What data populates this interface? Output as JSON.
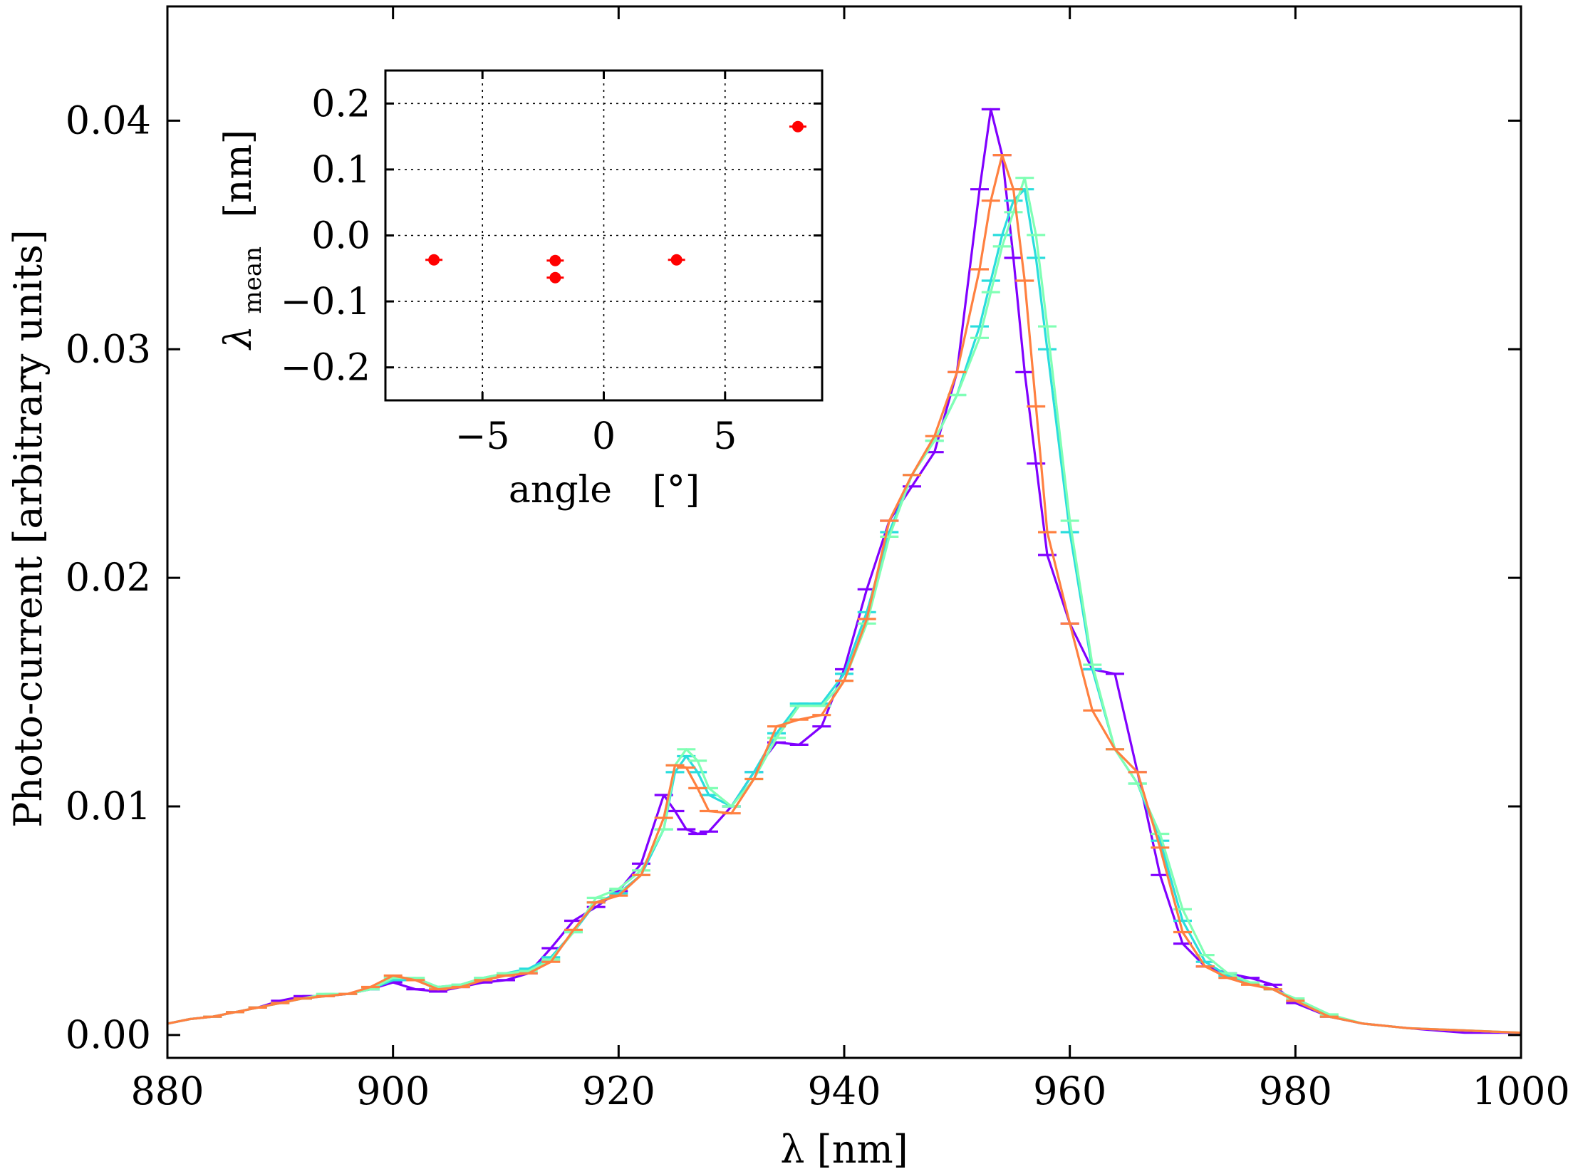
{
  "chart_data": [
    {
      "type": "line",
      "xlabel": "λ  [nm]",
      "ylabel": "Photo-current  [arbitrary units]",
      "xlim": [
        880,
        1000
      ],
      "ylim": [
        -0.001,
        0.045
      ],
      "xticks": [
        880,
        900,
        920,
        940,
        960,
        980,
        1000
      ],
      "xtick_labels": [
        "880",
        "900",
        "920",
        "940",
        "960",
        "980",
        "1000"
      ],
      "yticks": [
        0.0,
        0.01,
        0.02,
        0.03,
        0.04
      ],
      "ytick_labels": [
        "0.00",
        "0.01",
        "0.02",
        "0.03",
        "0.04"
      ],
      "grid": false,
      "series": [
        {
          "color": "#8000ff",
          "x": [
            880,
            882,
            884,
            886,
            888,
            890,
            892,
            894,
            896,
            898,
            900,
            902,
            904,
            906,
            908,
            910,
            912,
            914,
            916,
            918,
            920,
            922,
            924,
            925,
            926,
            927,
            928,
            930,
            932,
            934,
            936,
            938,
            940,
            942,
            944,
            946,
            948,
            950,
            952,
            953,
            954,
            955,
            956,
            957,
            958,
            960,
            962,
            964,
            966,
            968,
            970,
            972,
            974,
            976,
            978,
            980,
            983,
            986,
            990,
            995,
            1000
          ],
          "y": [
            0.0005,
            0.0007,
            0.0008,
            0.001,
            0.0012,
            0.0015,
            0.0017,
            0.0017,
            0.0018,
            0.002,
            0.0023,
            0.002,
            0.0019,
            0.0021,
            0.0023,
            0.0024,
            0.0027,
            0.0038,
            0.005,
            0.0056,
            0.0063,
            0.0075,
            0.0105,
            0.0098,
            0.009,
            0.0088,
            0.0089,
            0.01,
            0.0115,
            0.0128,
            0.0127,
            0.0135,
            0.016,
            0.0195,
            0.0225,
            0.024,
            0.0255,
            0.029,
            0.037,
            0.0405,
            0.0385,
            0.034,
            0.029,
            0.025,
            0.021,
            0.018,
            0.016,
            0.0158,
            0.0115,
            0.007,
            0.004,
            0.003,
            0.0027,
            0.0025,
            0.0022,
            0.0014,
            0.0008,
            0.0005,
            0.0003,
            0.0001,
            0.0001
          ]
        },
        {
          "color": "#2adddd",
          "x": [
            880,
            882,
            884,
            886,
            888,
            890,
            892,
            894,
            896,
            898,
            900,
            902,
            904,
            906,
            908,
            910,
            912,
            914,
            916,
            918,
            920,
            922,
            924,
            925,
            926,
            927,
            928,
            930,
            932,
            934,
            936,
            938,
            940,
            942,
            944,
            946,
            948,
            950,
            952,
            953,
            954,
            955,
            956,
            957,
            958,
            960,
            962,
            964,
            966,
            968,
            970,
            972,
            974,
            976,
            978,
            980,
            983,
            986,
            990,
            995,
            1000
          ],
          "y": [
            0.0005,
            0.0007,
            0.0008,
            0.001,
            0.0012,
            0.0014,
            0.0016,
            0.0017,
            0.0018,
            0.002,
            0.0024,
            0.0024,
            0.0021,
            0.0022,
            0.0025,
            0.0027,
            0.0029,
            0.0034,
            0.0045,
            0.0058,
            0.0062,
            0.007,
            0.009,
            0.0115,
            0.0122,
            0.0115,
            0.0105,
            0.01,
            0.0115,
            0.0132,
            0.0145,
            0.0145,
            0.0158,
            0.0185,
            0.022,
            0.0245,
            0.026,
            0.028,
            0.031,
            0.033,
            0.035,
            0.0365,
            0.037,
            0.034,
            0.03,
            0.022,
            0.016,
            0.0125,
            0.011,
            0.0085,
            0.005,
            0.0032,
            0.0026,
            0.0023,
            0.002,
            0.0015,
            0.0008,
            0.0005,
            0.0003,
            0.0002,
            0.0001
          ]
        },
        {
          "color": "#80ffb4",
          "x": [
            880,
            882,
            884,
            886,
            888,
            890,
            892,
            894,
            896,
            898,
            900,
            902,
            904,
            906,
            908,
            910,
            912,
            914,
            916,
            918,
            920,
            922,
            924,
            925,
            926,
            927,
            928,
            930,
            932,
            934,
            936,
            938,
            940,
            942,
            944,
            946,
            948,
            950,
            952,
            953,
            954,
            955,
            956,
            957,
            958,
            960,
            962,
            964,
            966,
            968,
            970,
            972,
            974,
            976,
            978,
            980,
            983,
            986,
            990,
            995,
            1000
          ],
          "y": [
            0.0005,
            0.0007,
            0.0008,
            0.001,
            0.0012,
            0.0014,
            0.0016,
            0.0018,
            0.0018,
            0.002,
            0.0025,
            0.0025,
            0.0021,
            0.0022,
            0.0025,
            0.0027,
            0.0028,
            0.0033,
            0.0045,
            0.006,
            0.0064,
            0.0072,
            0.009,
            0.0118,
            0.0125,
            0.012,
            0.0108,
            0.01,
            0.0112,
            0.013,
            0.0144,
            0.0144,
            0.0155,
            0.018,
            0.0218,
            0.0245,
            0.026,
            0.028,
            0.0305,
            0.0325,
            0.0345,
            0.036,
            0.0375,
            0.035,
            0.031,
            0.0225,
            0.0162,
            0.0125,
            0.011,
            0.0088,
            0.0055,
            0.0035,
            0.0027,
            0.0023,
            0.002,
            0.0016,
            0.0009,
            0.0005,
            0.0003,
            0.0002,
            0.0001
          ]
        },
        {
          "color": "#ff8040",
          "x": [
            880,
            882,
            884,
            886,
            888,
            890,
            892,
            894,
            896,
            898,
            900,
            902,
            904,
            906,
            908,
            910,
            912,
            914,
            916,
            918,
            920,
            922,
            924,
            925,
            926,
            927,
            928,
            930,
            932,
            934,
            936,
            938,
            940,
            942,
            944,
            946,
            948,
            950,
            952,
            953,
            954,
            955,
            956,
            957,
            958,
            960,
            962,
            964,
            966,
            968,
            970,
            972,
            974,
            976,
            978,
            980,
            983,
            986,
            990,
            995,
            1000
          ],
          "y": [
            0.0005,
            0.0007,
            0.0008,
            0.001,
            0.0012,
            0.0014,
            0.0016,
            0.0017,
            0.0018,
            0.0021,
            0.0026,
            0.0024,
            0.002,
            0.0021,
            0.0024,
            0.0026,
            0.0027,
            0.0032,
            0.0046,
            0.0058,
            0.0061,
            0.007,
            0.0095,
            0.0118,
            0.0117,
            0.0108,
            0.0098,
            0.0097,
            0.0112,
            0.0135,
            0.0138,
            0.014,
            0.0155,
            0.0182,
            0.0225,
            0.0245,
            0.0262,
            0.029,
            0.0335,
            0.0365,
            0.0385,
            0.037,
            0.033,
            0.0275,
            0.022,
            0.018,
            0.0142,
            0.0125,
            0.0115,
            0.0082,
            0.0045,
            0.003,
            0.0025,
            0.0022,
            0.002,
            0.0015,
            0.0008,
            0.0005,
            0.0003,
            0.0002,
            0.0001
          ]
        }
      ]
    },
    {
      "type": "scatter",
      "xlabel": "angle  [°]",
      "ylabel": "λmean  [nm]",
      "ylabel_main": "λ",
      "ylabel_sub": "mean",
      "ylabel_unit": "[nm]",
      "xlabel_main": "angle",
      "xlabel_unit": "[°]",
      "xlim": [
        -9,
        9
      ],
      "ylim": [
        -0.25,
        0.25
      ],
      "xticks": [
        -5,
        0,
        5
      ],
      "xtick_labels": [
        "−5",
        "0",
        "5"
      ],
      "yticks": [
        -0.2,
        -0.1,
        0.0,
        0.1,
        0.2
      ],
      "ytick_labels": [
        "−0.2",
        "−0.1",
        "0.0",
        "0.1",
        "0.2"
      ],
      "grid": true,
      "marker_color": "#ff0000",
      "points": [
        {
          "x": -7.0,
          "y": -0.037
        },
        {
          "x": -2.0,
          "y": -0.038
        },
        {
          "x": -2.0,
          "y": -0.064
        },
        {
          "x": 3.0,
          "y": -0.037
        },
        {
          "x": 8.0,
          "y": 0.165
        }
      ]
    }
  ]
}
